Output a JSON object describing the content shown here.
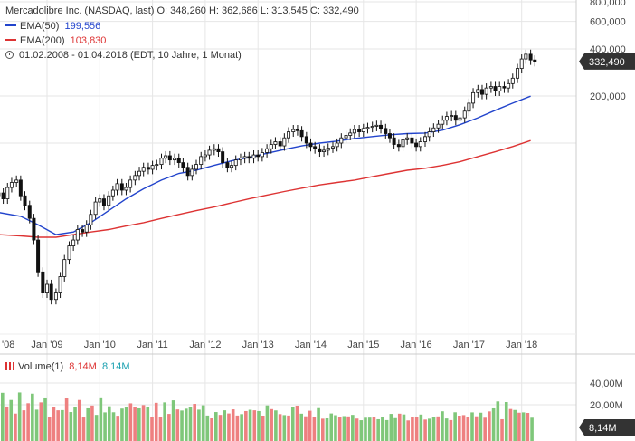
{
  "header": {
    "title_line": "Mercadolibre Inc. (NASDAQ, last)  O: 348,260  H: 362,686  L: 313,545  C: 332,490",
    "ema50_label": "EMA(50)",
    "ema50_value": "199,556",
    "ema200_label": "EMA(200)",
    "ema200_value": "103,830",
    "range_text": "01.02.2008 - 01.04.2018   (EDT, 10 Jahre, 1 Monat)"
  },
  "volume_legend": {
    "label": "Volume(1)",
    "value_red": "8,14M",
    "value_teal": "8,14M"
  },
  "colors": {
    "ema50": "#2244cc",
    "ema200": "#dd3333",
    "up": "#ffffff",
    "down": "#111111",
    "vol_up": "#7fc77a",
    "vol_down": "#ee8080",
    "grid": "#e6e6e6",
    "badge": "#333333"
  },
  "chart_data": [
    {
      "type": "candlestick",
      "scale": "log",
      "x_tick_labels": [
        "'08",
        "Jan '09",
        "Jan '10",
        "Jan '11",
        "Jan '12",
        "Jan '13",
        "Jan '14",
        "Jan '15",
        "Jan '16",
        "Jan '17",
        "Jan '18"
      ],
      "y_tick_labels": [
        "800,000",
        "600,000",
        "400,000",
        "200,000"
      ],
      "y_ticks": [
        800,
        600,
        400,
        200
      ],
      "last_value": 332.49,
      "last_value_label": "332,490",
      "series": [
        {
          "name": "EMA(50)",
          "points": [
            [
              2008.08,
              36
            ],
            [
              2008.5,
              34
            ],
            [
              2008.83,
              30
            ],
            [
              2009.17,
              26
            ],
            [
              2009.5,
              27
            ],
            [
              2009.83,
              31
            ],
            [
              2010.17,
              37
            ],
            [
              2010.5,
              44
            ],
            [
              2010.83,
              51
            ],
            [
              2011.17,
              58
            ],
            [
              2011.5,
              64
            ],
            [
              2011.83,
              67
            ],
            [
              2012.17,
              72
            ],
            [
              2012.5,
              77
            ],
            [
              2012.83,
              81
            ],
            [
              2013.17,
              86
            ],
            [
              2013.5,
              91
            ],
            [
              2013.83,
              96
            ],
            [
              2014.17,
              100
            ],
            [
              2014.5,
              103
            ],
            [
              2014.83,
              107
            ],
            [
              2015.17,
              110
            ],
            [
              2015.5,
              113
            ],
            [
              2015.83,
              115
            ],
            [
              2016.17,
              116
            ],
            [
              2016.5,
              121
            ],
            [
              2016.83,
              131
            ],
            [
              2017.17,
              145
            ],
            [
              2017.5,
              162
            ],
            [
              2017.83,
              180
            ],
            [
              2018.17,
              199.556
            ]
          ]
        },
        {
          "name": "EMA(200)",
          "points": [
            [
              2008.08,
              26
            ],
            [
              2008.5,
              25.5
            ],
            [
              2008.83,
              25
            ],
            [
              2009.17,
              25
            ],
            [
              2009.5,
              26
            ],
            [
              2009.83,
              27
            ],
            [
              2010.17,
              28
            ],
            [
              2010.5,
              29.5
            ],
            [
              2010.83,
              31
            ],
            [
              2011.17,
              33
            ],
            [
              2011.5,
              35
            ],
            [
              2011.83,
              37
            ],
            [
              2012.17,
              39
            ],
            [
              2012.5,
              41.5
            ],
            [
              2012.83,
              44
            ],
            [
              2013.17,
              46.5
            ],
            [
              2013.5,
              49
            ],
            [
              2013.83,
              51.5
            ],
            [
              2014.17,
              54
            ],
            [
              2014.5,
              56
            ],
            [
              2014.83,
              58
            ],
            [
              2015.17,
              61
            ],
            [
              2015.5,
              64
            ],
            [
              2015.83,
              67
            ],
            [
              2016.17,
              69
            ],
            [
              2016.5,
              72
            ],
            [
              2016.83,
              76
            ],
            [
              2017.17,
              82
            ],
            [
              2017.5,
              88
            ],
            [
              2017.83,
              95
            ],
            [
              2018.17,
              103.83
            ]
          ]
        }
      ],
      "closes": [
        [
          2008.08,
          48
        ],
        [
          2008.17,
          44
        ],
        [
          2008.25,
          52
        ],
        [
          2008.33,
          56
        ],
        [
          2008.42,
          58
        ],
        [
          2008.5,
          46
        ],
        [
          2008.58,
          40
        ],
        [
          2008.67,
          33
        ],
        [
          2008.75,
          24
        ],
        [
          2008.83,
          15
        ],
        [
          2008.92,
          11
        ],
        [
          2009.0,
          12.5
        ],
        [
          2009.08,
          10
        ],
        [
          2009.17,
          11
        ],
        [
          2009.25,
          14
        ],
        [
          2009.33,
          18
        ],
        [
          2009.42,
          22
        ],
        [
          2009.5,
          24
        ],
        [
          2009.58,
          28
        ],
        [
          2009.67,
          27
        ],
        [
          2009.75,
          30
        ],
        [
          2009.83,
          35
        ],
        [
          2009.92,
          42
        ],
        [
          2010.0,
          44
        ],
        [
          2010.08,
          40
        ],
        [
          2010.17,
          46
        ],
        [
          2010.25,
          50
        ],
        [
          2010.33,
          55
        ],
        [
          2010.42,
          50
        ],
        [
          2010.5,
          52
        ],
        [
          2010.58,
          58
        ],
        [
          2010.67,
          62
        ],
        [
          2010.75,
          66
        ],
        [
          2010.83,
          70
        ],
        [
          2010.92,
          68
        ],
        [
          2011.0,
          72
        ],
        [
          2011.08,
          73
        ],
        [
          2011.17,
          80
        ],
        [
          2011.25,
          83
        ],
        [
          2011.33,
          78
        ],
        [
          2011.42,
          80
        ],
        [
          2011.5,
          75
        ],
        [
          2011.58,
          70
        ],
        [
          2011.67,
          62
        ],
        [
          2011.75,
          68
        ],
        [
          2011.83,
          73
        ],
        [
          2011.92,
          82
        ],
        [
          2012.0,
          84
        ],
        [
          2012.08,
          90
        ],
        [
          2012.17,
          92
        ],
        [
          2012.25,
          88
        ],
        [
          2012.33,
          75
        ],
        [
          2012.42,
          70
        ],
        [
          2012.5,
          72
        ],
        [
          2012.58,
          78
        ],
        [
          2012.67,
          80
        ],
        [
          2012.75,
          82
        ],
        [
          2012.83,
          80
        ],
        [
          2012.92,
          84
        ],
        [
          2013.0,
          82
        ],
        [
          2013.08,
          87
        ],
        [
          2013.17,
          92
        ],
        [
          2013.25,
          98
        ],
        [
          2013.33,
          102
        ],
        [
          2013.42,
          96
        ],
        [
          2013.5,
          108
        ],
        [
          2013.58,
          118
        ],
        [
          2013.67,
          122
        ],
        [
          2013.75,
          120
        ],
        [
          2013.83,
          110
        ],
        [
          2013.92,
          100
        ],
        [
          2014.0,
          95
        ],
        [
          2014.08,
          92
        ],
        [
          2014.17,
          88
        ],
        [
          2014.25,
          90
        ],
        [
          2014.33,
          93
        ],
        [
          2014.42,
          95
        ],
        [
          2014.5,
          100
        ],
        [
          2014.58,
          108
        ],
        [
          2014.67,
          112
        ],
        [
          2014.75,
          116
        ],
        [
          2014.83,
          122
        ],
        [
          2014.92,
          118
        ],
        [
          2015.0,
          124
        ],
        [
          2015.08,
          126
        ],
        [
          2015.17,
          128
        ],
        [
          2015.25,
          130
        ],
        [
          2015.33,
          124
        ],
        [
          2015.42,
          115
        ],
        [
          2015.5,
          108
        ],
        [
          2015.58,
          98
        ],
        [
          2015.67,
          95
        ],
        [
          2015.75,
          105
        ],
        [
          2015.83,
          108
        ],
        [
          2015.92,
          100
        ],
        [
          2016.0,
          95
        ],
        [
          2016.08,
          102
        ],
        [
          2016.17,
          110
        ],
        [
          2016.25,
          118
        ],
        [
          2016.33,
          125
        ],
        [
          2016.42,
          132
        ],
        [
          2016.5,
          140
        ],
        [
          2016.58,
          148
        ],
        [
          2016.67,
          150
        ],
        [
          2016.75,
          140
        ],
        [
          2016.83,
          145
        ],
        [
          2016.92,
          160
        ],
        [
          2017.0,
          180
        ],
        [
          2017.08,
          210
        ],
        [
          2017.17,
          220
        ],
        [
          2017.25,
          205
        ],
        [
          2017.33,
          225
        ],
        [
          2017.42,
          230
        ],
        [
          2017.5,
          215
        ],
        [
          2017.58,
          230
        ],
        [
          2017.67,
          225
        ],
        [
          2017.75,
          240
        ],
        [
          2017.83,
          260
        ],
        [
          2017.92,
          300
        ],
        [
          2018.0,
          345
        ],
        [
          2018.08,
          370
        ],
        [
          2018.17,
          340
        ],
        [
          2018.25,
          332.49
        ]
      ]
    },
    {
      "type": "bar",
      "name": "Volume(1)",
      "y_tick_labels": [
        "40,00M",
        "20,00M"
      ],
      "y_ticks": [
        40,
        20
      ],
      "last_value_label": "8,14M",
      "values": [
        31.0,
        18.4,
        24.4,
        11.9,
        31.3,
        14.9,
        21.4,
        30.2,
        15.5,
        22.2,
        26.7,
        9.0,
        18.3,
        14.9,
        15.1,
        26.0,
        13.3,
        17.7,
        24.4,
        8.3,
        16.7,
        19.3,
        10.7,
        26.8,
        13.0,
        18.6,
        13.1,
        9.9,
        16.5,
        17.9,
        21.3,
        17.8,
        16.7,
        19.7,
        17.5,
        8.5,
        21.8,
        9.1,
        22.2,
        11.6,
        24.1,
        15.7,
        14.7,
        16.4,
        17.5,
        20.8,
        15.5,
        19.5,
        10.1,
        7.5,
        13.3,
        10.7,
        14.9,
        12.0,
        15.8,
        10.1,
        11.4,
        14.2,
        15.4,
        14.9,
        14.2,
        10.0,
        19.4,
        16.0,
        14.8,
        11.4,
        10.5,
        10.1,
        18.2,
        19.2,
        11.8,
        9.4,
        14.5,
        9.0,
        16.9,
        7.2,
        7.5,
        12.0,
        10.4,
        8.7,
        9.6,
        9.3,
        10.7,
        7.3,
        5.8,
        8.1,
        8.2,
        8.5,
        6.7,
        9.0,
        5.9,
        11.6,
        7.7,
        11.8,
        11.1,
        5.6,
        9.0,
        8.6,
        11.0,
        6.4,
        7.2,
        8.6,
        9.3,
        14.0,
        7.4,
        5.9,
        13.1,
        10.0,
        10.5,
        8.4,
        13.0,
        9.4,
        12.7,
        8.1,
        13.9,
        16.7,
        23.1,
        6.7,
        22.5,
        16.1,
        15.2,
        12.7,
        13.0,
        12.5,
        8.1
      ]
    }
  ]
}
